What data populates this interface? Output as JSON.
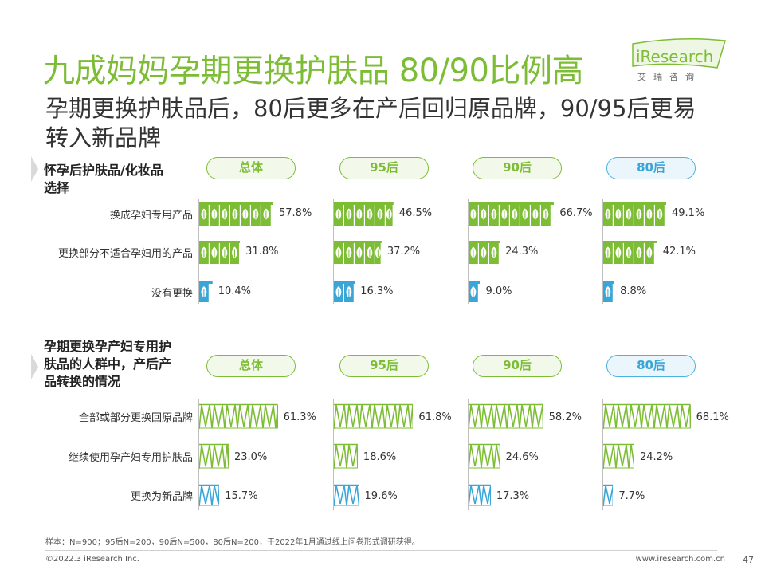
{
  "title": "九成妈妈孕期更换护肤品 80/90比例高",
  "subtitle": "孕期更换护肤品后，80后更多在产后回归原品牌，90/95后更易转入新品牌",
  "logo": {
    "wordmark": "iResearch",
    "sub": "艾瑞咨询"
  },
  "colors": {
    "green": "#7dbd35",
    "blue": "#3aa6d8",
    "text": "#333333"
  },
  "chart_data": [
    {
      "type": "bar",
      "title": "怀孕后护肤品/化妆品选择",
      "groups": [
        "总体",
        "95后",
        "90后",
        "80后"
      ],
      "categories": [
        "换成孕妇专用产品",
        "更换部分不适合孕妇用的产品",
        "没有更换"
      ],
      "series": [
        {
          "name": "总体",
          "values": [
            57.8,
            31.8,
            10.4
          ],
          "labels": [
            "57.8%",
            "31.8%",
            "10.4%"
          ]
        },
        {
          "name": "95后",
          "values": [
            46.5,
            37.2,
            16.3
          ],
          "labels": [
            "46.5%",
            "37.2%",
            "16.3%"
          ]
        },
        {
          "name": "90后",
          "values": [
            66.7,
            24.3,
            9.0
          ],
          "labels": [
            "66.7%",
            "24.3%",
            "9.0%"
          ]
        },
        {
          "name": "80后",
          "values": [
            49.1,
            42.1,
            8.8
          ],
          "labels": [
            "49.1%",
            "42.1%",
            "8.8%"
          ]
        }
      ],
      "category_colors": [
        "green",
        "green",
        "blue"
      ],
      "unit": "%"
    },
    {
      "type": "bar",
      "title": "孕期更换孕产妇专用护肤品的人群中，产后产品转换的情况",
      "groups": [
        "总体",
        "95后",
        "90后",
        "80后"
      ],
      "categories": [
        "全部或部分更换回原品牌",
        "继续使用孕产妇专用护肤品",
        "更换为新品牌"
      ],
      "series": [
        {
          "name": "总体",
          "values": [
            61.3,
            23.0,
            15.7
          ],
          "labels": [
            "61.3%",
            "23.0%",
            "15.7%"
          ]
        },
        {
          "name": "95后",
          "values": [
            61.8,
            18.6,
            19.6
          ],
          "labels": [
            "61.8%",
            "18.6%",
            "19.6%"
          ]
        },
        {
          "name": "90后",
          "values": [
            58.2,
            24.6,
            17.3
          ],
          "labels": [
            "58.2%",
            "24.6%",
            "17.3%"
          ]
        },
        {
          "name": "80后",
          "values": [
            68.1,
            24.2,
            7.7
          ],
          "labels": [
            "68.1%",
            "24.2%",
            "7.7%"
          ]
        }
      ],
      "category_colors": [
        "green",
        "green",
        "blue"
      ],
      "unit": "%"
    }
  ],
  "section1": {
    "label_line1": "怀孕后护肤品/化妆品",
    "label_line2": "选择"
  },
  "section2": {
    "label_line1": "孕期更换孕产妇专用护",
    "label_line2": "肤品的人群中，产后产",
    "label_line3": "品转换的情况"
  },
  "footer": {
    "note": "样本：N=900；95后N=200，90后N=500，80后N=200，于2022年1月通过线上问卷形式调研获得。",
    "copyright": "©2022.3 iResearch Inc.",
    "url": "www.iresearch.com.cn",
    "page": "47"
  }
}
